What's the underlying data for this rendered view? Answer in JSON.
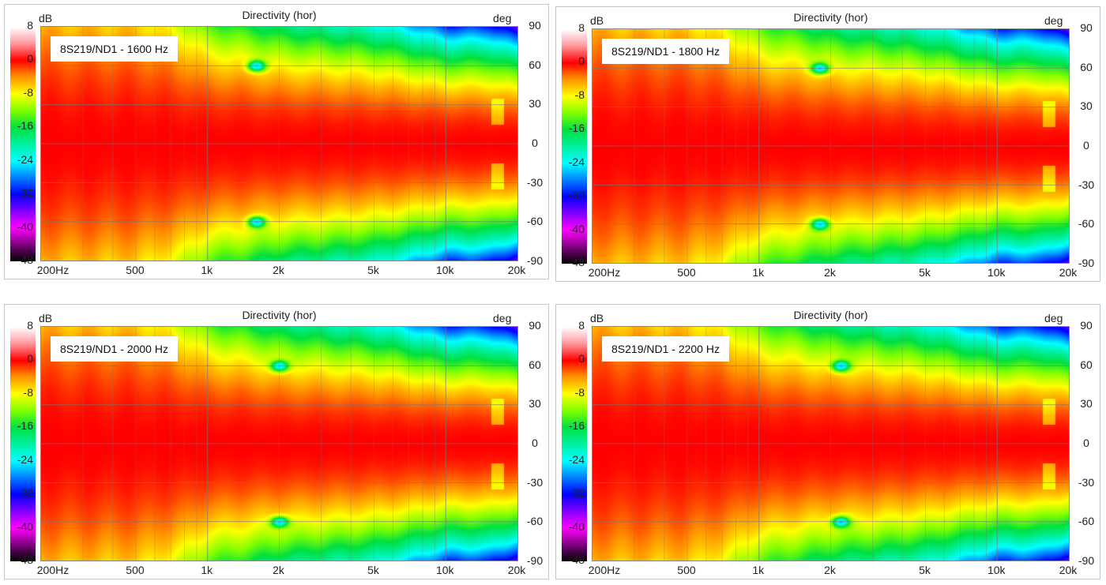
{
  "chart_data": [
    {
      "type": "heatmap",
      "title": "Directivity (hor)",
      "legend": "8S219/ND1 - 1600 Hz",
      "notch_freq_hz": 1600
    },
    {
      "type": "heatmap",
      "title": "Directivity (hor)",
      "legend": "8S219/ND1 - 1800 Hz",
      "notch_freq_hz": 1800
    },
    {
      "type": "heatmap",
      "title": "Directivity (hor)",
      "legend": "8S219/ND1 - 2000 Hz",
      "notch_freq_hz": 2000
    },
    {
      "type": "heatmap",
      "title": "Directivity (hor)",
      "legend": "8S219/ND1 - 2200 Hz",
      "notch_freq_hz": 2200
    }
  ],
  "axes": {
    "xlim_hz": [
      200,
      20000
    ],
    "ylim_deg": [
      -90,
      90
    ],
    "zlim_db": [
      -48,
      8
    ],
    "x_ticks": [
      {
        "v": 200,
        "label": "200Hz"
      },
      {
        "v": 500,
        "label": "500"
      },
      {
        "v": 1000,
        "label": "1k"
      },
      {
        "v": 2000,
        "label": "2k"
      },
      {
        "v": 5000,
        "label": "5k"
      },
      {
        "v": 10000,
        "label": "10k"
      },
      {
        "v": 20000,
        "label": "20k"
      }
    ],
    "y_ticks": [
      "90",
      "60",
      "30",
      "0",
      "-30",
      "-60",
      "-90"
    ],
    "colorbar_ticks": [
      "8",
      "0",
      "-8",
      "-16",
      "-24",
      "-32",
      "-40",
      "-48"
    ],
    "z_unit": "dB",
    "y_unit": "deg"
  },
  "colormap": [
    [
      8,
      "#ffffff"
    ],
    [
      4,
      "#ff9aa0"
    ],
    [
      0,
      "#ff0000"
    ],
    [
      -4,
      "#ff8c00"
    ],
    [
      -8,
      "#ffff00"
    ],
    [
      -12,
      "#80ff00"
    ],
    [
      -16,
      "#00e040"
    ],
    [
      -24,
      "#00ffff"
    ],
    [
      -32,
      "#0000ff"
    ],
    [
      -40,
      "#ff00ff"
    ],
    [
      -48,
      "#000000"
    ]
  ]
}
